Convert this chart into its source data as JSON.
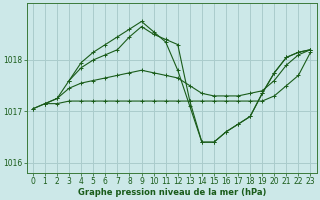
{
  "background_color": "#cce8e8",
  "grid_color": "#aacccc",
  "line_color": "#1a5c1a",
  "title": "Graphe pression niveau de la mer (hPa)",
  "xlim": [
    -0.5,
    23.5
  ],
  "ylim": [
    1015.8,
    1019.1
  ],
  "yticks": [
    1016,
    1017,
    1018
  ],
  "xticks": [
    0,
    1,
    2,
    3,
    4,
    5,
    6,
    7,
    8,
    9,
    10,
    11,
    12,
    13,
    14,
    15,
    16,
    17,
    18,
    19,
    20,
    21,
    22,
    23
  ],
  "series": [
    {
      "x": [
        0,
        1,
        2,
        3,
        4,
        5,
        6,
        7,
        8,
        9,
        10,
        11,
        12,
        13,
        14,
        15,
        16,
        17,
        18,
        19,
        20,
        21,
        22,
        23
      ],
      "y": [
        1017.05,
        1017.15,
        1017.15,
        1017.2,
        1017.2,
        1017.2,
        1017.2,
        1017.2,
        1017.2,
        1017.2,
        1017.2,
        1017.2,
        1017.2,
        1017.2,
        1017.2,
        1017.2,
        1017.2,
        1017.2,
        1017.2,
        1017.2,
        1017.3,
        1017.5,
        1017.7,
        1018.15
      ]
    },
    {
      "x": [
        0,
        1,
        2,
        3,
        4,
        5,
        6,
        7,
        8,
        9,
        10,
        11,
        12,
        13,
        14,
        15,
        16,
        17,
        18,
        19,
        20,
        21,
        22,
        23
      ],
      "y": [
        1017.05,
        1017.15,
        1017.25,
        1017.45,
        1017.55,
        1017.6,
        1017.65,
        1017.7,
        1017.75,
        1017.8,
        1017.75,
        1017.7,
        1017.65,
        1017.5,
        1017.35,
        1017.3,
        1017.3,
        1017.3,
        1017.35,
        1017.4,
        1017.6,
        1017.9,
        1018.1,
        1018.2
      ]
    },
    {
      "x": [
        1,
        2,
        3,
        4,
        5,
        6,
        7,
        8,
        9,
        10,
        11,
        12,
        13,
        14,
        15,
        16,
        17,
        18,
        19,
        20,
        21,
        22,
        23
      ],
      "y": [
        1017.15,
        1017.25,
        1017.6,
        1017.95,
        1018.15,
        1018.3,
        1018.45,
        1018.6,
        1018.75,
        1018.55,
        1018.35,
        1017.8,
        1017.1,
        1016.4,
        1016.4,
        1016.6,
        1016.75,
        1016.9,
        1017.35,
        1017.75,
        1018.05,
        1018.15,
        1018.2
      ]
    },
    {
      "x": [
        3,
        4,
        5,
        6,
        7,
        8,
        9,
        10,
        11,
        12,
        13,
        14,
        15,
        16,
        17,
        18,
        19,
        20,
        21,
        22,
        23
      ],
      "y": [
        1017.6,
        1017.85,
        1018.0,
        1018.1,
        1018.2,
        1018.45,
        1018.65,
        1018.5,
        1018.4,
        1018.3,
        1017.2,
        1016.4,
        1016.4,
        1016.6,
        1016.75,
        1016.9,
        1017.35,
        1017.75,
        1018.05,
        1018.15,
        1018.2
      ]
    }
  ]
}
